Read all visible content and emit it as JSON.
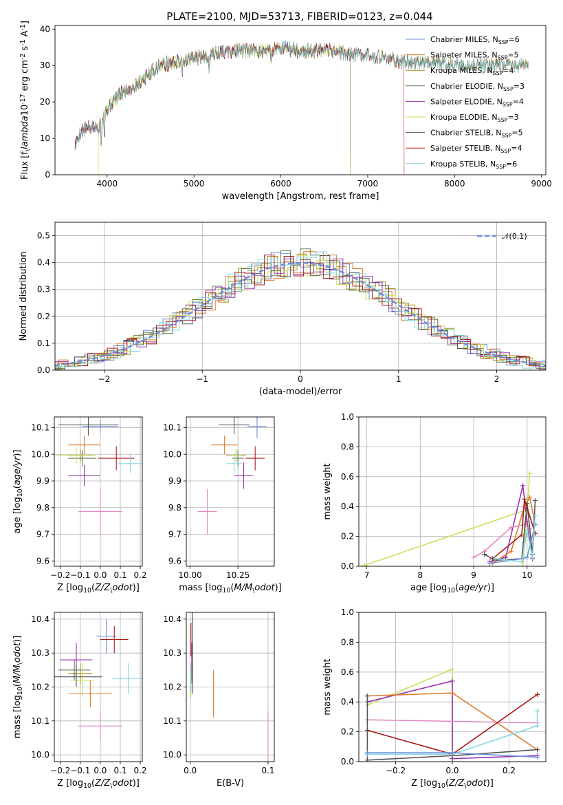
{
  "figure": {
    "title": "PLATE=2100, MJD=53713, FIBERID=0123, z=0.044"
  },
  "colors": {
    "Chabrier MILES": "#6a8fdc",
    "Salpeter MILES": "#e07b2a",
    "Kroupa MILES": "#a98a1a",
    "Chabrier ELODIE": "#5a7a50",
    "Salpeter ELODIE": "#9a30b0",
    "Kroupa ELODIE": "#c9e05a",
    "Chabrier STELIB": "#555555",
    "Salpeter STELIB": "#aa1a1a",
    "Kroupa STELIB": "#85d8e0"
  },
  "chart_data": [
    {
      "id": "spectrum",
      "type": "line",
      "xlabel": "wavelength [Angstrom, rest frame]",
      "ylabel": "Flux [f$_\\lambda$10$^{-17}$ erg cm$^{-2}$ s$^{-1}$ A$^{-1}$]",
      "xlim": [
        3400,
        9050
      ],
      "ylim": [
        0,
        41
      ],
      "xticks": [
        4000,
        5000,
        6000,
        7000,
        8000,
        9000
      ],
      "yticks": [
        0,
        10,
        20,
        30,
        40
      ],
      "legend_position": "top-right",
      "continuum": [
        [
          3630,
          8
        ],
        [
          3700,
          12
        ],
        [
          3800,
          13
        ],
        [
          3900,
          13
        ],
        [
          3950,
          16
        ],
        [
          4000,
          18
        ],
        [
          4100,
          21
        ],
        [
          4200,
          23
        ],
        [
          4300,
          24
        ],
        [
          4400,
          26
        ],
        [
          4500,
          28
        ],
        [
          4600,
          30
        ],
        [
          4800,
          31
        ],
        [
          5000,
          32
        ],
        [
          5200,
          33
        ],
        [
          5400,
          34
        ],
        [
          5600,
          34
        ],
        [
          5800,
          34
        ],
        [
          6000,
          35
        ],
        [
          6200,
          34
        ],
        [
          6400,
          34
        ],
        [
          6600,
          34
        ],
        [
          6800,
          33
        ],
        [
          7000,
          33
        ],
        [
          7200,
          32
        ],
        [
          7400,
          31
        ],
        [
          7600,
          31
        ],
        [
          7800,
          31
        ],
        [
          8000,
          30
        ],
        [
          8200,
          30
        ],
        [
          8400,
          30
        ],
        [
          8600,
          30
        ],
        [
          8800,
          30
        ],
        [
          8850,
          30
        ]
      ],
      "series": [
        {
          "name": "Chabrier MILES, N$_{SSP}$=6",
          "key": "Chabrier MILES",
          "x_range": [
            3630,
            8850
          ]
        },
        {
          "name": "Salpeter MILES, N$_{SSP}$=5",
          "key": "Salpeter MILES",
          "x_range": [
            3630,
            8850
          ]
        },
        {
          "name": "Kroupa MILES, N$_{SSP}$=4",
          "key": "Kroupa MILES",
          "x_range": [
            3630,
            8850
          ]
        },
        {
          "name": "Chabrier ELODIE, N$_{SSP}$=3",
          "key": "Chabrier ELODIE",
          "x_range": [
            3630,
            6800
          ]
        },
        {
          "name": "Salpeter ELODIE, N$_{SSP}$=4",
          "key": "Salpeter ELODIE",
          "x_range": [
            3630,
            6800
          ]
        },
        {
          "name": "Kroupa ELODIE, N$_{SSP}$=3",
          "key": "Kroupa ELODIE",
          "x_range": [
            3900,
            6800
          ]
        },
        {
          "name": "Chabrier STELIB, N$_{SSP}$=5",
          "key": "Chabrier STELIB",
          "x_range": [
            3630,
            8850
          ]
        },
        {
          "name": "Salpeter STELIB, N$_{SSP}$=4",
          "key": "Salpeter STELIB",
          "x_range": [
            3630,
            7420
          ]
        },
        {
          "name": "Kroupa STELIB, N$_{SSP}$=6",
          "key": "Kroupa STELIB",
          "x_range": [
            3630,
            8850
          ]
        }
      ]
    },
    {
      "id": "residuals",
      "type": "histogram",
      "xlabel": "(data-model)/error",
      "ylabel": "Normed distribution",
      "xlim": [
        -2.5,
        2.5
      ],
      "ylim": [
        0,
        0.55
      ],
      "xticks": [
        -2,
        -1,
        0,
        1,
        2
      ],
      "yticks": [
        0.0,
        0.1,
        0.2,
        0.3,
        0.4,
        0.5
      ],
      "grid": true,
      "bin_width": 0.1,
      "reference_curve": {
        "name": "$\\mathcal{N}(0,1)$",
        "color": "#6a8fdc",
        "dashed": true
      },
      "series_keys": [
        "Chabrier MILES",
        "Salpeter MILES",
        "Kroupa MILES",
        "Chabrier ELODIE",
        "Salpeter ELODIE",
        "Kroupa ELODIE",
        "Chabrier STELIB",
        "Salpeter STELIB",
        "Kroupa STELIB"
      ],
      "legend_position": "top-right"
    },
    {
      "id": "age_vs_Z",
      "type": "errorbar",
      "xlabel": "Z [log$_{10}$($Z/Z_\\odot$)]",
      "ylabel": "age  [log$_{10}$($age/yr$)]",
      "xlim": [
        -0.23,
        0.21
      ],
      "ylim": [
        9.58,
        10.14
      ],
      "xticks": [
        -0.2,
        -0.1,
        0.0,
        0.1,
        0.2
      ],
      "yticks": [
        9.6,
        9.7,
        9.8,
        9.9,
        10.0,
        10.1
      ],
      "grid": true,
      "points": [
        {
          "key": "Chabrier MILES",
          "x": 0.0,
          "xerr": 0.09,
          "y": 10.105,
          "yerr": 0.025
        },
        {
          "key": "Salpeter MILES",
          "x": -0.08,
          "xerr": 0.08,
          "y": 10.035,
          "yerr": 0.035
        },
        {
          "key": "Kroupa MILES",
          "x": -0.1,
          "xerr": 0.06,
          "y": 9.995,
          "yerr": 0.025
        },
        {
          "key": "Chabrier ELODIE",
          "x": -0.09,
          "xerr": 0.07,
          "y": 9.985,
          "yerr": 0.03
        },
        {
          "key": "Salpeter ELODIE",
          "x": -0.08,
          "xerr": 0.08,
          "y": 9.92,
          "yerr": 0.04
        },
        {
          "key": "Kroupa ELODIE",
          "x": -0.12,
          "xerr": 0.1,
          "y": 9.995,
          "yerr": 0.03
        },
        {
          "key": "Chabrier STELIB",
          "x": -0.06,
          "xerr": 0.15,
          "y": 10.11,
          "yerr": 0.04
        },
        {
          "key": "Salpeter STELIB",
          "x": 0.08,
          "xerr": 0.09,
          "y": 9.985,
          "yerr": 0.045
        },
        {
          "key": "Kroupa STELIB",
          "x": 0.15,
          "xerr": 0.06,
          "y": 9.965,
          "yerr": 0.035
        },
        {
          "key": "pink",
          "x": 0.0,
          "xerr": 0.11,
          "y": 9.785,
          "yerr": 0.085
        }
      ]
    },
    {
      "id": "age_vs_mass",
      "type": "errorbar",
      "xlabel": "mass [log$_{10}$($M/M_\\odot$)]",
      "ylabel": "",
      "xlim": [
        9.98,
        10.44
      ],
      "ylim": [
        9.58,
        10.14
      ],
      "xticks": [
        10.0,
        10.25
      ],
      "yticks": [
        9.6,
        9.7,
        9.8,
        9.9,
        10.0,
        10.1
      ],
      "grid": true,
      "points": [
        {
          "key": "Chabrier MILES",
          "x": 10.35,
          "xerr": 0.05,
          "y": 10.105,
          "yerr": 0.045
        },
        {
          "key": "Salpeter MILES",
          "x": 10.18,
          "xerr": 0.07,
          "y": 10.035,
          "yerr": 0.035
        },
        {
          "key": "Kroupa MILES",
          "x": 10.24,
          "xerr": 0.05,
          "y": 9.995,
          "yerr": 0.025
        },
        {
          "key": "Chabrier ELODIE",
          "x": 10.25,
          "xerr": 0.03,
          "y": 9.985,
          "yerr": 0.03
        },
        {
          "key": "Salpeter ELODIE",
          "x": 10.28,
          "xerr": 0.05,
          "y": 9.92,
          "yerr": 0.05
        },
        {
          "key": "Kroupa ELODIE",
          "x": 10.24,
          "xerr": 0.04,
          "y": 9.995,
          "yerr": 0.025
        },
        {
          "key": "Chabrier STELIB",
          "x": 10.23,
          "xerr": 0.08,
          "y": 10.11,
          "yerr": 0.035
        },
        {
          "key": "Salpeter STELIB",
          "x": 10.34,
          "xerr": 0.05,
          "y": 9.985,
          "yerr": 0.045
        },
        {
          "key": "Kroupa STELIB",
          "x": 10.23,
          "xerr": 0.04,
          "y": 9.965,
          "yerr": 0.035
        },
        {
          "key": "pink",
          "x": 10.09,
          "xerr": 0.05,
          "y": 9.785,
          "yerr": 0.085
        }
      ]
    },
    {
      "id": "mass_vs_Z",
      "type": "errorbar",
      "xlabel": "Z [log$_{10}$($Z/Z_\\odot$)]",
      "ylabel": "mass [log$_{10}$($M/M_\\odot$)]",
      "xlim": [
        -0.23,
        0.21
      ],
      "ylim": [
        9.98,
        10.42
      ],
      "xticks": [
        -0.2,
        -0.1,
        0.0,
        0.1,
        0.2
      ],
      "yticks": [
        10.0,
        10.1,
        10.2,
        10.3,
        10.4
      ],
      "grid": true,
      "points": [
        {
          "key": "Chabrier MILES",
          "x": 0.03,
          "xerr": 0.05,
          "y": 10.35,
          "yerr": 0.05
        },
        {
          "key": "Salpeter MILES",
          "x": -0.05,
          "xerr": 0.11,
          "y": 10.18,
          "yerr": 0.04
        },
        {
          "key": "Kroupa MILES",
          "x": -0.1,
          "xerr": 0.06,
          "y": 10.24,
          "yerr": 0.03
        },
        {
          "key": "Chabrier ELODIE",
          "x": -0.13,
          "xerr": 0.08,
          "y": 10.25,
          "yerr": 0.03
        },
        {
          "key": "Salpeter ELODIE",
          "x": -0.12,
          "xerr": 0.08,
          "y": 10.28,
          "yerr": 0.05
        },
        {
          "key": "Kroupa ELODIE",
          "x": -0.09,
          "xerr": 0.06,
          "y": 10.22,
          "yerr": 0.05
        },
        {
          "key": "Chabrier STELIB",
          "x": -0.12,
          "xerr": 0.13,
          "y": 10.23,
          "yerr": 0.03
        },
        {
          "key": "Salpeter STELIB",
          "x": 0.07,
          "xerr": 0.07,
          "y": 10.34,
          "yerr": 0.04
        },
        {
          "key": "Kroupa STELIB",
          "x": 0.14,
          "xerr": 0.08,
          "y": 10.225,
          "yerr": 0.045
        },
        {
          "key": "pink",
          "x": 0.0,
          "xerr": 0.11,
          "y": 10.085,
          "yerr": 0.045
        }
      ]
    },
    {
      "id": "mass_vs_EBV",
      "type": "errorbar",
      "xlabel": "E(B-V)",
      "ylabel": "",
      "xlim": [
        -0.005,
        0.108
      ],
      "ylim": [
        9.98,
        10.42
      ],
      "xticks": [
        0.0,
        0.1
      ],
      "yticks": [
        10.0,
        10.1,
        10.2,
        10.3,
        10.4
      ],
      "grid": true,
      "points": [
        {
          "key": "Chabrier MILES",
          "x": 0.003,
          "xerr": 0,
          "y": 10.35,
          "yerr": 0.055
        },
        {
          "key": "Salpeter MILES",
          "x": 0.03,
          "xerr": 0,
          "y": 10.18,
          "yerr": 0.07
        },
        {
          "key": "Kroupa MILES",
          "x": 0.002,
          "xerr": 0,
          "y": 10.24,
          "yerr": 0.03
        },
        {
          "key": "Chabrier ELODIE",
          "x": 0.002,
          "xerr": 0,
          "y": 10.25,
          "yerr": 0.03
        },
        {
          "key": "Salpeter ELODIE",
          "x": 0.002,
          "xerr": 0,
          "y": 10.28,
          "yerr": 0.05
        },
        {
          "key": "Kroupa ELODIE",
          "x": 0.001,
          "xerr": 0,
          "y": 10.22,
          "yerr": 0.05
        },
        {
          "key": "Chabrier STELIB",
          "x": 0.003,
          "xerr": 0,
          "y": 10.3,
          "yerr": 0.12
        },
        {
          "key": "Salpeter STELIB",
          "x": 0.001,
          "xerr": 0,
          "y": 10.34,
          "yerr": 0.05
        },
        {
          "key": "Kroupa STELIB",
          "x": 0.001,
          "xerr": 0,
          "y": 10.225,
          "yerr": 0.04
        },
        {
          "key": "pink",
          "x": 0.1,
          "xerr": 0,
          "y": 10.05,
          "yerr": 0.08
        }
      ]
    },
    {
      "id": "weight_vs_age",
      "type": "line",
      "xlabel": "age  [log$_{10}$($age/yr$)]",
      "ylabel": "mass weight",
      "xlim": [
        6.85,
        10.35
      ],
      "ylim": [
        0,
        1.0
      ],
      "xticks": [
        7,
        8,
        9,
        10
      ],
      "yticks": [
        0.0,
        0.2,
        0.4,
        0.6,
        0.8,
        1.0
      ],
      "grid": true,
      "series": [
        {
          "key": "Kroupa ELODIE",
          "points": [
            [
              6.95,
              0.005
            ],
            [
              10.0,
              0.38
            ],
            [
              10.05,
              0.62
            ],
            [
              9.92,
              0.0
            ]
          ]
        },
        {
          "key": "Salpeter ELODIE",
          "points": [
            [
              9.3,
              0.03
            ],
            [
              9.6,
              0.06
            ],
            [
              9.92,
              0.54
            ],
            [
              10.0,
              0.3
            ],
            [
              10.1,
              0.05
            ]
          ]
        },
        {
          "key": "Salpeter MILES",
          "points": [
            [
              9.35,
              0.02
            ],
            [
              9.7,
              0.1
            ],
            [
              9.95,
              0.4
            ],
            [
              10.05,
              0.46
            ],
            [
              10.15,
              0.28
            ]
          ]
        },
        {
          "key": "pink",
          "points": [
            [
              9.0,
              0.06
            ],
            [
              9.2,
              0.1
            ],
            [
              9.7,
              0.26
            ],
            [
              9.95,
              0.28
            ],
            [
              10.05,
              0.25
            ]
          ]
        },
        {
          "key": "Chabrier STELIB",
          "points": [
            [
              9.2,
              0.08
            ],
            [
              9.4,
              0.04
            ],
            [
              9.9,
              0.05
            ],
            [
              10.0,
              0.42
            ],
            [
              10.1,
              0.08
            ],
            [
              10.15,
              0.44
            ]
          ]
        },
        {
          "key": "Salpeter STELIB",
          "points": [
            [
              9.35,
              0.05
            ],
            [
              9.9,
              0.21
            ],
            [
              9.95,
              0.45
            ],
            [
              10.15,
              0.22
            ]
          ]
        },
        {
          "key": "Chabrier MILES",
          "points": [
            [
              9.3,
              0.02
            ],
            [
              9.9,
              0.05
            ],
            [
              10.0,
              0.06
            ],
            [
              10.15,
              0.28
            ]
          ]
        },
        {
          "key": "Kroupa STELIB",
          "points": [
            [
              9.4,
              0.05
            ],
            [
              9.9,
              0.03
            ],
            [
              10.0,
              0.24
            ],
            [
              10.1,
              0.06
            ],
            [
              10.15,
              0.34
            ]
          ]
        }
      ]
    },
    {
      "id": "weight_vs_Z",
      "type": "line",
      "xlabel": "Z [log$_{10}$($Z/Z_\\odot$)]",
      "ylabel": "mass weight",
      "xlim": [
        -0.33,
        0.33
      ],
      "ylim": [
        0,
        1.0
      ],
      "xticks": [
        -0.2,
        0.0,
        0.2
      ],
      "yticks": [
        0.0,
        0.2,
        0.4,
        0.6,
        0.8,
        1.0
      ],
      "grid": true,
      "series": [
        {
          "key": "Kroupa ELODIE",
          "points": [
            [
              -0.3,
              0.38
            ],
            [
              0.0,
              0.62
            ],
            [
              0.0,
              0.0
            ]
          ]
        },
        {
          "key": "Salpeter ELODIE",
          "points": [
            [
              -0.3,
              0.4
            ],
            [
              0.0,
              0.54
            ],
            [
              0.0,
              0.02
            ],
            [
              0.3,
              0.04
            ]
          ]
        },
        {
          "key": "Salpeter MILES",
          "points": [
            [
              -0.3,
              0.44
            ],
            [
              0.0,
              0.46
            ],
            [
              0.3,
              0.08
            ]
          ]
        },
        {
          "key": "pink",
          "points": [
            [
              -0.3,
              0.28
            ],
            [
              0.3,
              0.26
            ]
          ]
        },
        {
          "key": "Salpeter STELIB",
          "points": [
            [
              -0.3,
              0.21
            ],
            [
              0.0,
              0.05
            ],
            [
              0.3,
              0.45
            ]
          ]
        },
        {
          "key": "Chabrier STELIB",
          "points": [
            [
              -0.3,
              0.44
            ],
            [
              -0.3,
              0.01
            ],
            [
              0.0,
              0.04
            ],
            [
              0.3,
              0.08
            ]
          ]
        },
        {
          "key": "Kroupa STELIB",
          "points": [
            [
              -0.3,
              0.05
            ],
            [
              0.0,
              0.05
            ],
            [
              0.3,
              0.24
            ],
            [
              0.3,
              0.34
            ]
          ]
        },
        {
          "key": "Chabrier MILES",
          "points": [
            [
              -0.3,
              0.06
            ],
            [
              0.0,
              0.06
            ],
            [
              0.3,
              0.03
            ]
          ]
        }
      ]
    }
  ]
}
